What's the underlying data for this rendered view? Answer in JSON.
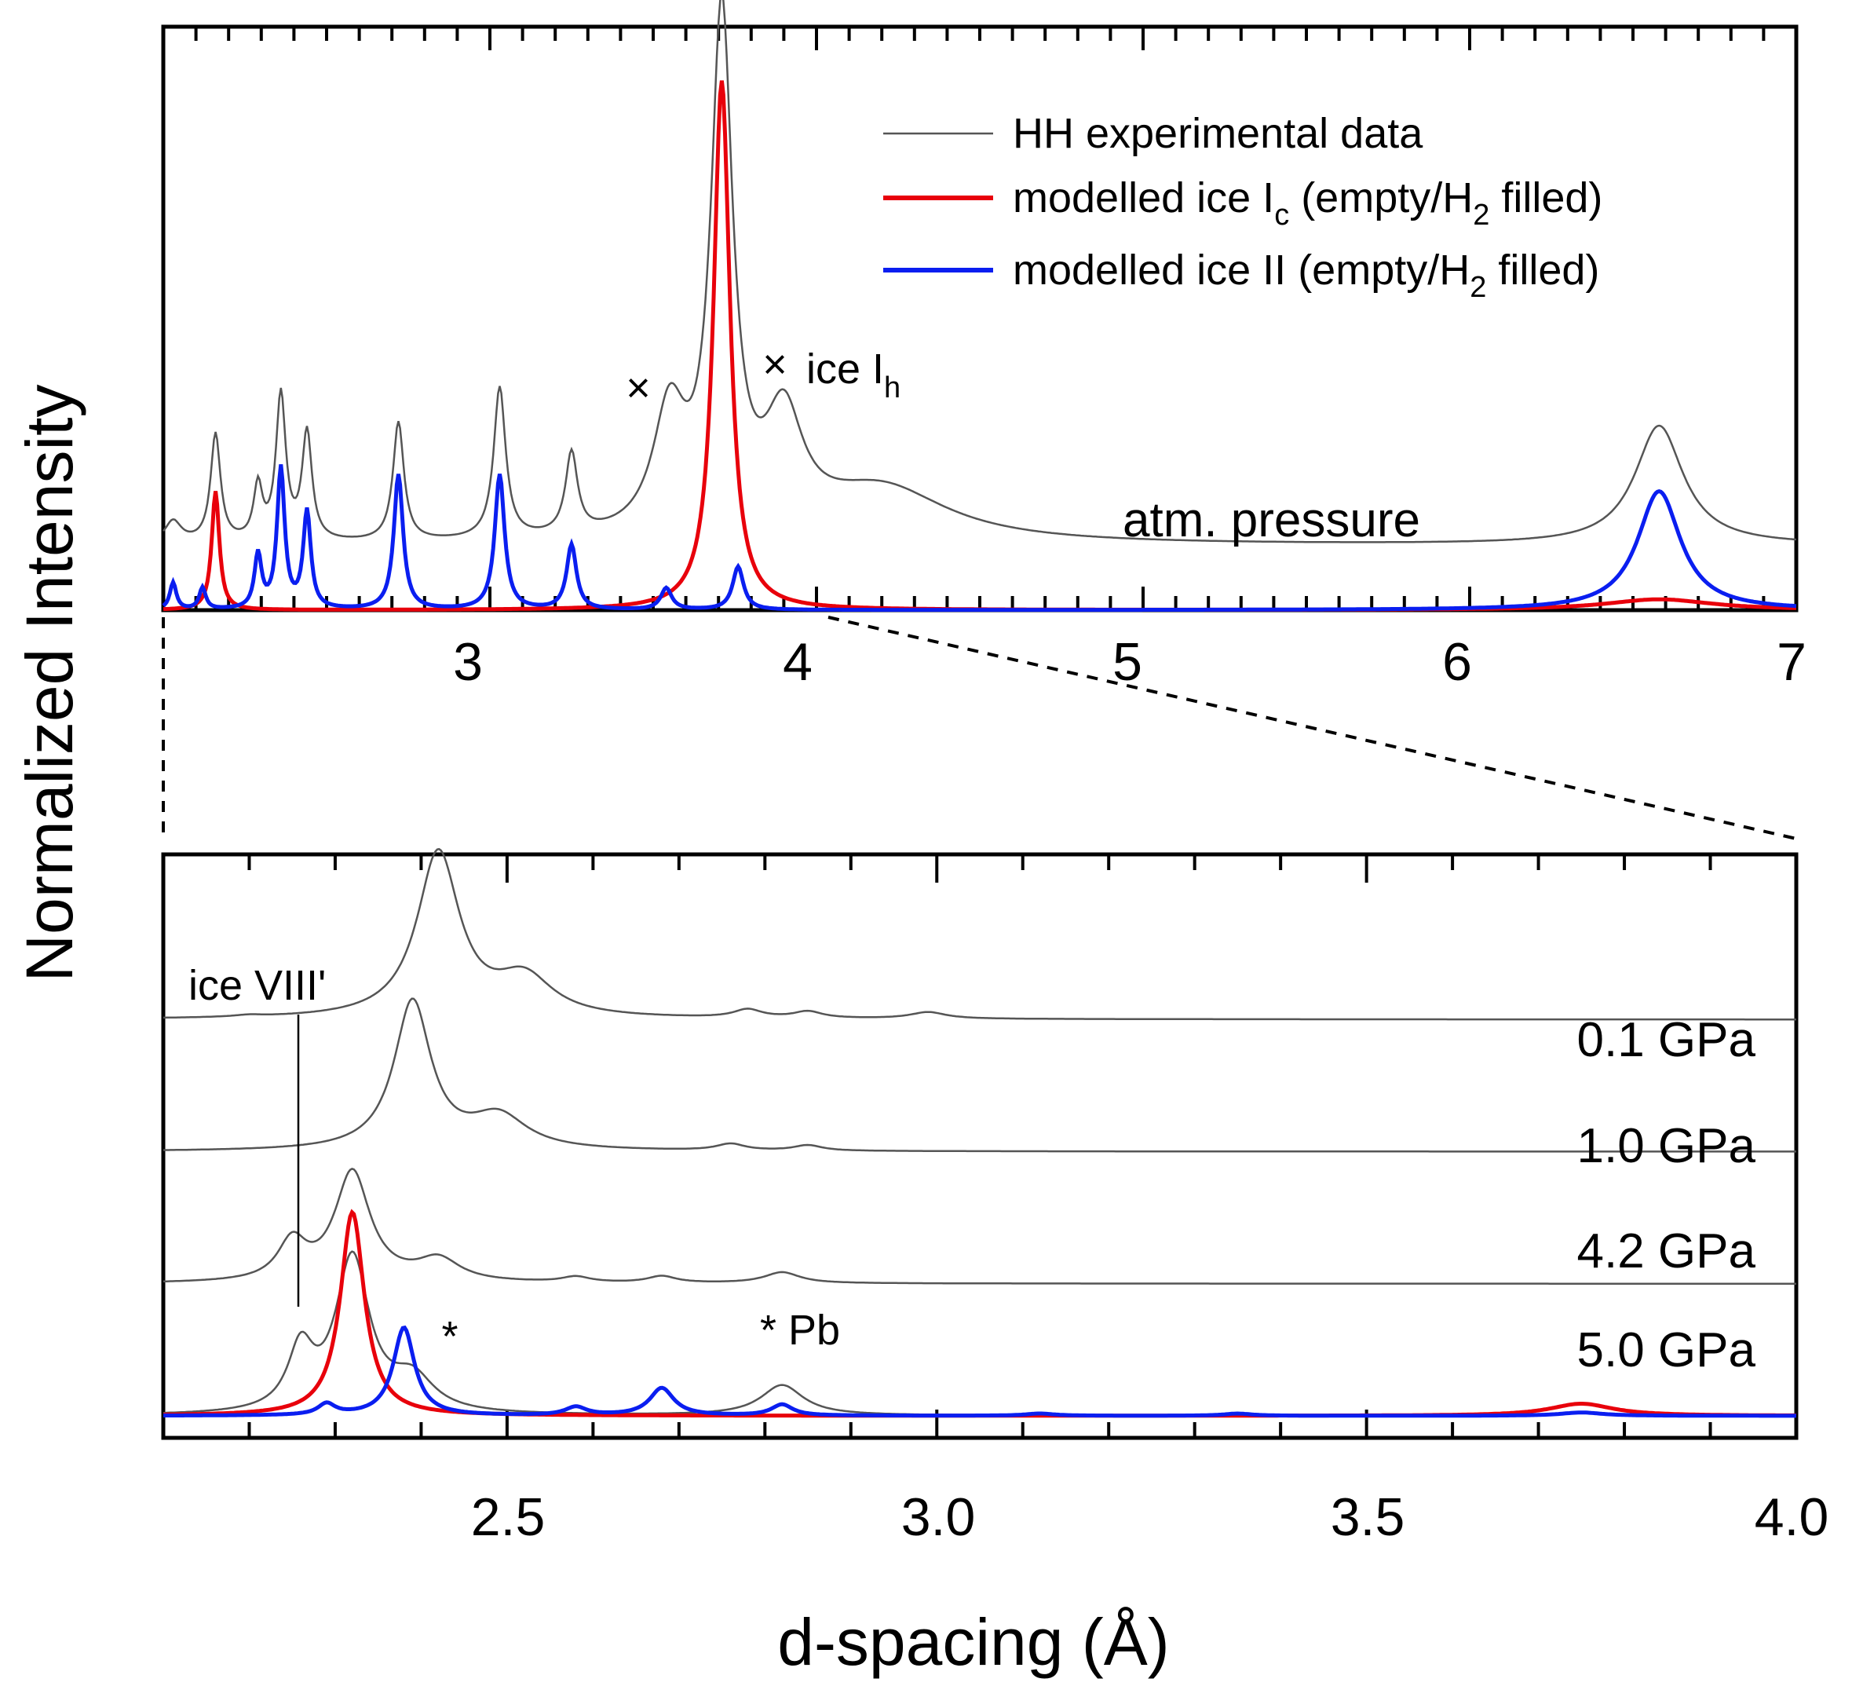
{
  "chart_data": [
    {
      "type": "line",
      "panel": "top",
      "xlabel": "d-spacing (Å)",
      "ylabel": "Normalized Intensity",
      "xlim": [
        2.0,
        7.0
      ],
      "ylim": [
        0,
        1.08
      ],
      "x_ticks": [
        "3",
        "4",
        "5",
        "6",
        "7"
      ],
      "condition_label": "atm. pressure",
      "legend": {
        "position": "top-right",
        "entries": [
          {
            "id": "exp",
            "label": "HH experimental data",
            "color": "#555555"
          },
          {
            "id": "ic",
            "label_pre": "modelled ice I",
            "label_sub": "c",
            "label_mid": " (empty/H",
            "label_sub2": "2",
            "label_post": " filled)",
            "color": "#e8000b"
          },
          {
            "id": "ii",
            "label_pre": "modelled ice II",
            "label_sub": "",
            "label_mid": " (empty/H",
            "label_sub2": "2",
            "label_post": " filled)",
            "color": "#0a1ef0"
          }
        ]
      },
      "annotations": [
        {
          "id": "ih_left_marker",
          "text": "×",
          "x": 3.53,
          "y": 0.37
        },
        {
          "id": "ih_label_marker",
          "text": "×",
          "x": 3.9,
          "y": 0.43
        },
        {
          "id": "ih_label",
          "text_pre": "ice I",
          "text_sub": "h",
          "x": 4.0,
          "y": 0.43
        }
      ],
      "series": [
        {
          "name": "HH experimental data",
          "color": "#555555",
          "baseline": 0.12,
          "peaks": [
            [
              2.03,
              0.04,
              0.03
            ],
            [
              2.16,
              0.2,
              0.018
            ],
            [
              2.29,
              0.1,
              0.016
            ],
            [
              2.36,
              0.27,
              0.018
            ],
            [
              2.44,
              0.2,
              0.018
            ],
            [
              2.72,
              0.22,
              0.02
            ],
            [
              3.03,
              0.28,
              0.022
            ],
            [
              3.25,
              0.15,
              0.022
            ],
            [
              3.55,
              0.22,
              0.06
            ],
            [
              3.71,
              0.95,
              0.04
            ],
            [
              3.9,
              0.2,
              0.07
            ],
            [
              4.2,
              0.1,
              0.25
            ],
            [
              6.58,
              0.22,
              0.09
            ]
          ]
        },
        {
          "name": "modelled ice Ic",
          "color": "#e8000b",
          "baseline": 0.0,
          "peaks": [
            [
              2.16,
              0.22,
              0.014
            ],
            [
              3.71,
              0.98,
              0.03
            ],
            [
              6.58,
              0.02,
              0.2
            ]
          ]
        },
        {
          "name": "modelled ice II",
          "color": "#0a1ef0",
          "baseline": 0.0,
          "peaks": [
            [
              2.03,
              0.05,
              0.012
            ],
            [
              2.12,
              0.04,
              0.012
            ],
            [
              2.29,
              0.1,
              0.013
            ],
            [
              2.36,
              0.26,
              0.014
            ],
            [
              2.44,
              0.18,
              0.014
            ],
            [
              2.72,
              0.25,
              0.017
            ],
            [
              3.03,
              0.25,
              0.018
            ],
            [
              3.25,
              0.12,
              0.018
            ],
            [
              3.54,
              0.04,
              0.02
            ],
            [
              3.76,
              0.08,
              0.02
            ],
            [
              6.58,
              0.22,
              0.08
            ]
          ]
        }
      ]
    },
    {
      "type": "line",
      "panel": "bottom",
      "xlabel": "d-spacing (Å)",
      "xlim": [
        2.1,
        4.0
      ],
      "ylim": [
        -0.04,
        1.02
      ],
      "x_ticks": [
        "2.5",
        "3.0",
        "3.5",
        "4.0"
      ],
      "x_tick_values": [
        2.5,
        3.0,
        3.5,
        4.0
      ],
      "annotations": [
        {
          "id": "ice_viii_label",
          "text": "ice VIII'",
          "x": 2.27,
          "y": 0.82,
          "pointer_to": [
            2.27,
            0.19
          ]
        },
        {
          "id": "asterisk_1",
          "text": "*",
          "x": 2.44,
          "y": 0.09
        },
        {
          "id": "pb_label",
          "text": "* Pb",
          "x": 2.82,
          "y": 0.1
        }
      ],
      "series": [
        {
          "name": "0.1 GPa",
          "label": "0.1 GPa",
          "color": "#555555",
          "offset": 0.72,
          "peaks": [
            [
              2.2,
              0.003,
              0.02
            ],
            [
              2.42,
              0.3,
              0.03
            ],
            [
              2.52,
              0.07,
              0.04
            ],
            [
              2.78,
              0.015,
              0.02
            ],
            [
              2.85,
              0.012,
              0.02
            ],
            [
              2.99,
              0.012,
              0.025
            ]
          ]
        },
        {
          "name": "1.0 GPa",
          "label": "1.0 GPa",
          "color": "#555555",
          "offset": 0.48,
          "peaks": [
            [
              2.39,
              0.27,
              0.026
            ],
            [
              2.49,
              0.06,
              0.04
            ],
            [
              2.76,
              0.012,
              0.02
            ],
            [
              2.85,
              0.01,
              0.02
            ]
          ]
        },
        {
          "name": "4.2 GPa",
          "label": "4.2 GPa",
          "color": "#555555",
          "offset": 0.24,
          "peaks": [
            [
              2.25,
              0.07,
              0.02
            ],
            [
              2.32,
              0.2,
              0.025
            ],
            [
              2.42,
              0.04,
              0.03
            ],
            [
              2.58,
              0.01,
              0.02
            ],
            [
              2.68,
              0.012,
              0.02
            ],
            [
              2.82,
              0.02,
              0.025
            ]
          ]
        },
        {
          "name": "5.0 GPa",
          "label": "5.0 GPa",
          "color": "#555555",
          "offset": 0.0,
          "peaks": [
            [
              2.26,
              0.11,
              0.018
            ],
            [
              2.32,
              0.28,
              0.024
            ],
            [
              2.39,
              0.06,
              0.03
            ],
            [
              2.82,
              0.055,
              0.03
            ],
            [
              3.75,
              0.022,
              0.05
            ]
          ]
        },
        {
          "name": "modelled ice Ic 5.0 GPa",
          "color": "#e8000b",
          "offset": 0.0,
          "peaks": [
            [
              2.32,
              0.37,
              0.017
            ],
            [
              3.75,
              0.022,
              0.045
            ]
          ]
        },
        {
          "name": "modelled ice II 5.0 GPa",
          "color": "#0a1ef0",
          "offset": 0.0,
          "peaks": [
            [
              2.29,
              0.02,
              0.012
            ],
            [
              2.38,
              0.16,
              0.015
            ],
            [
              2.58,
              0.015,
              0.015
            ],
            [
              2.68,
              0.05,
              0.017
            ],
            [
              2.82,
              0.02,
              0.015
            ],
            [
              3.12,
              0.004,
              0.02
            ],
            [
              3.35,
              0.004,
              0.02
            ],
            [
              3.75,
              0.006,
              0.03
            ]
          ]
        }
      ]
    }
  ]
}
